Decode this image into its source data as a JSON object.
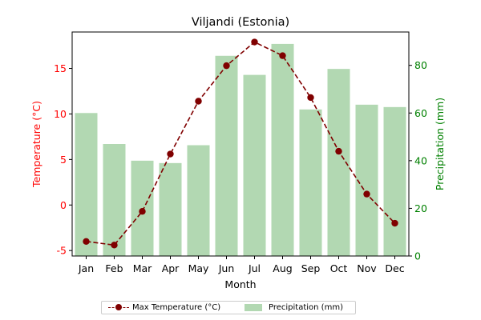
{
  "chart_data": {
    "type": "bar+line",
    "title": "Viljandi (Estonia)",
    "xlabel": "Month",
    "categories": [
      "Jan",
      "Feb",
      "Mar",
      "Apr",
      "May",
      "Jun",
      "Jul",
      "Aug",
      "Sep",
      "Oct",
      "Nov",
      "Dec"
    ],
    "y_left": {
      "label": "Temperature (°C)",
      "color": "#ff0000",
      "lim": [
        -5.6,
        19.0
      ],
      "ticks": [
        -5,
        0,
        5,
        10,
        15
      ]
    },
    "y_right": {
      "label": "Precipitation (mm)",
      "color": "#008000",
      "lim": [
        0,
        94
      ],
      "ticks": [
        0,
        20,
        40,
        60,
        80
      ]
    },
    "series": [
      {
        "name": "Max Temperature (°C)",
        "type": "line",
        "axis": "left",
        "color": "#800000",
        "linestyle": "dashed",
        "marker": "circle",
        "values": [
          -4.0,
          -4.4,
          -0.7,
          5.6,
          11.4,
          15.3,
          17.9,
          16.4,
          11.8,
          5.9,
          1.2,
          -2.0
        ]
      },
      {
        "name": "Precipitation (mm)",
        "type": "bar",
        "axis": "right",
        "color": "#b2d8b2",
        "values": [
          60,
          47,
          40,
          39,
          46.5,
          84,
          76,
          89,
          61.5,
          78.5,
          63.5,
          62.5
        ]
      }
    ],
    "legend_position": "bottom-center",
    "grid": false
  }
}
